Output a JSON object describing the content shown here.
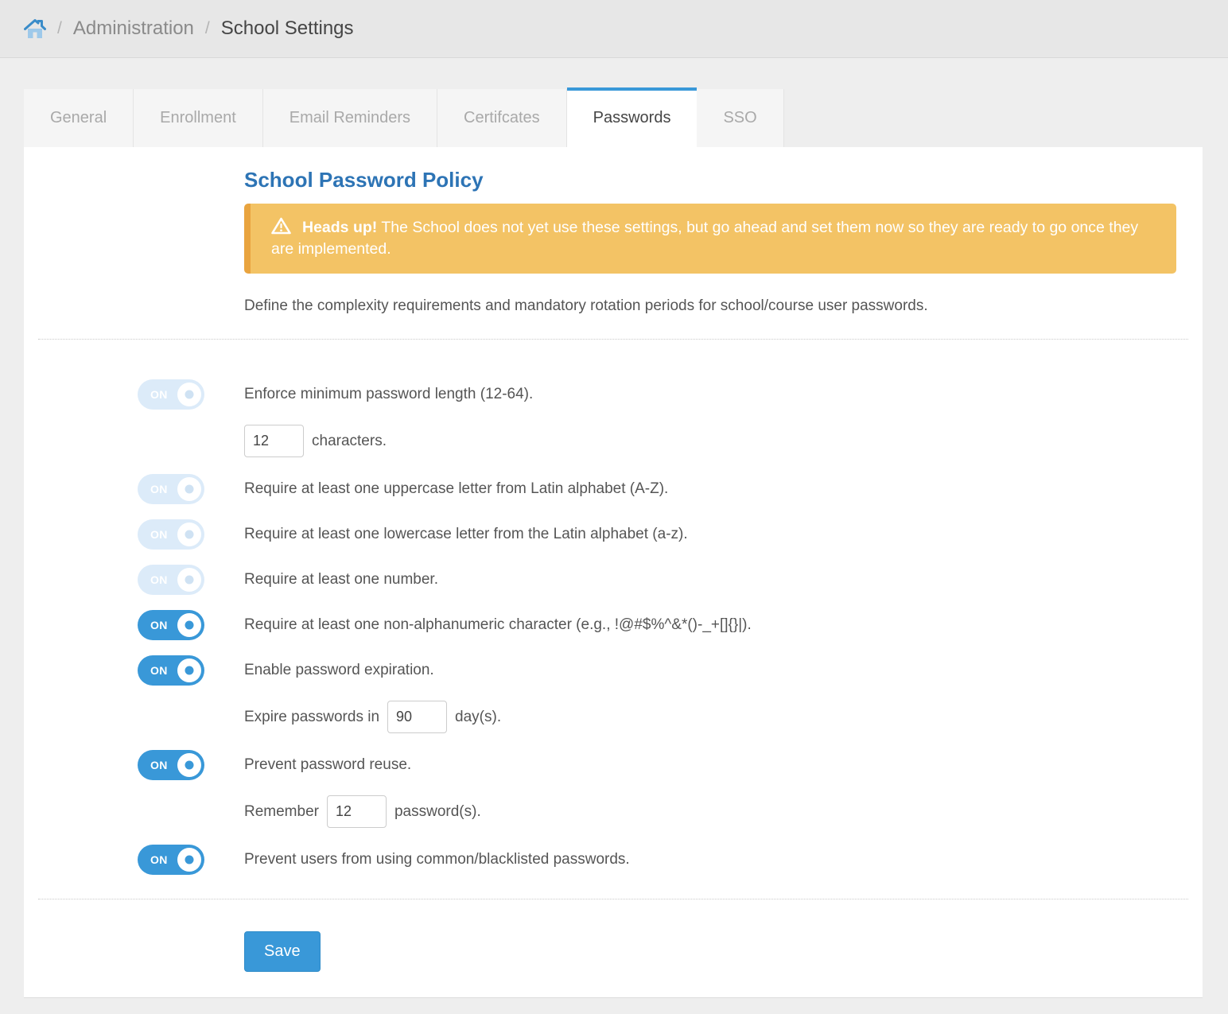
{
  "breadcrumb": {
    "separator": "/",
    "items": [
      "Administration",
      "School Settings"
    ]
  },
  "tabs": [
    {
      "id": "general",
      "label": "General",
      "active": false
    },
    {
      "id": "enrollment",
      "label": "Enrollment",
      "active": false
    },
    {
      "id": "email-reminders",
      "label": "Email Reminders",
      "active": false
    },
    {
      "id": "certificates",
      "label": "Certifcates",
      "active": false
    },
    {
      "id": "passwords",
      "label": "Passwords",
      "active": true
    },
    {
      "id": "sso",
      "label": "SSO",
      "active": false
    }
  ],
  "page": {
    "title": "School Password Policy",
    "alert": {
      "title": "Heads up!",
      "text": "The School does not yet use these settings, but go ahead and set them now so they are ready to go once they are implemented."
    },
    "description": "Define the complexity requirements and mandatory rotation periods for school/course user passwords.",
    "save_label": "Save"
  },
  "toggle_on_label": "ON",
  "policies": [
    {
      "id": "min-length",
      "label": "Enforce minimum password length (12-64).",
      "state": "on",
      "enabled": false,
      "sub": {
        "prefix": "",
        "value": "12",
        "suffix": "characters."
      }
    },
    {
      "id": "uppercase",
      "label": "Require at least one uppercase letter from Latin alphabet (A-Z).",
      "state": "on",
      "enabled": false
    },
    {
      "id": "lowercase",
      "label": "Require at least one lowercase letter from the Latin alphabet (a-z).",
      "state": "on",
      "enabled": false
    },
    {
      "id": "number",
      "label": "Require at least one number.",
      "state": "on",
      "enabled": false
    },
    {
      "id": "special-char",
      "label": "Require at least one non-alphanumeric character (e.g., !@#$%^&*()-_+[]{}|).",
      "state": "on",
      "enabled": true
    },
    {
      "id": "expiration",
      "label": "Enable password expiration.",
      "state": "on",
      "enabled": true,
      "sub": {
        "prefix": "Expire passwords in",
        "value": "90",
        "suffix": "day(s)."
      }
    },
    {
      "id": "reuse",
      "label": "Prevent password reuse.",
      "state": "on",
      "enabled": true,
      "sub": {
        "prefix": "Remember",
        "value": "12",
        "suffix": "password(s)."
      }
    },
    {
      "id": "blacklist",
      "label": "Prevent users from using common/blacklisted passwords.",
      "state": "on",
      "enabled": true
    }
  ],
  "colors": {
    "accent": "#3998d8",
    "title": "#2d74b5",
    "alert_bg": "#f3c365",
    "alert_border": "#e9a43f",
    "toggle_light_bg": "#dcebf9",
    "page_bg": "#eeeeee"
  }
}
